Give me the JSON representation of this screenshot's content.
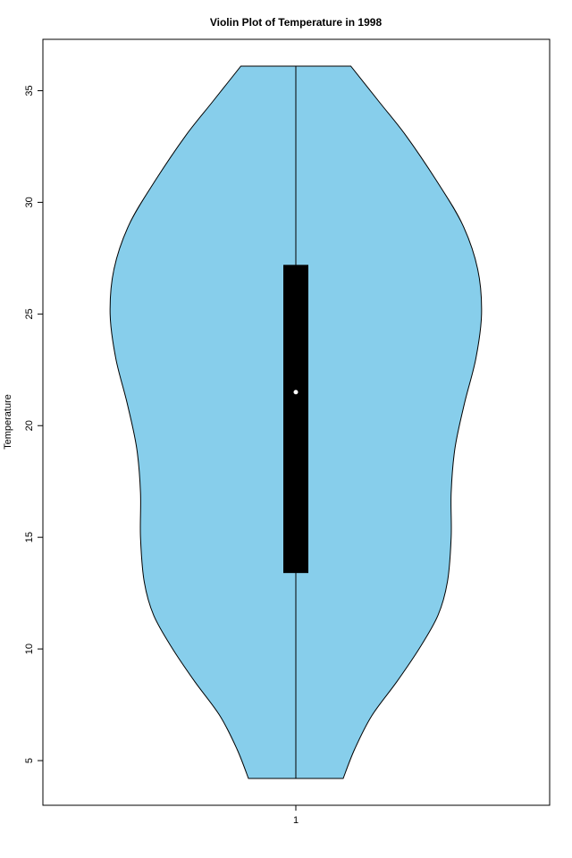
{
  "chart_data": {
    "type": "violin",
    "title": "Violin Plot of Temperature in 1998",
    "xlabel": "",
    "ylabel": "Temperature",
    "categories": [
      "1"
    ],
    "y_ticks": [
      5,
      10,
      15,
      20,
      25,
      30,
      35
    ],
    "ylim": [
      3.0,
      37.3
    ],
    "fill_color": "#87ceeb",
    "box_color": "#000000",
    "median_color": "#ffffff",
    "grid": false,
    "violin": {
      "min": 4.2,
      "max": 36.1,
      "q1": 13.4,
      "median": 21.5,
      "q3": 27.2,
      "density_profile": [
        {
          "y": 4.2,
          "w": 0.25
        },
        {
          "y": 5.5,
          "w": 0.31
        },
        {
          "y": 7.0,
          "w": 0.4
        },
        {
          "y": 8.5,
          "w": 0.53
        },
        {
          "y": 10.0,
          "w": 0.65
        },
        {
          "y": 11.5,
          "w": 0.75
        },
        {
          "y": 13.0,
          "w": 0.8
        },
        {
          "y": 15.0,
          "w": 0.82
        },
        {
          "y": 17.0,
          "w": 0.82
        },
        {
          "y": 19.0,
          "w": 0.84
        },
        {
          "y": 21.0,
          "w": 0.89
        },
        {
          "y": 23.0,
          "w": 0.95
        },
        {
          "y": 25.0,
          "w": 0.98
        },
        {
          "y": 27.0,
          "w": 0.96
        },
        {
          "y": 29.0,
          "w": 0.88
        },
        {
          "y": 31.0,
          "w": 0.74
        },
        {
          "y": 33.0,
          "w": 0.58
        },
        {
          "y": 34.5,
          "w": 0.44
        },
        {
          "y": 36.1,
          "w": 0.29
        }
      ]
    }
  }
}
